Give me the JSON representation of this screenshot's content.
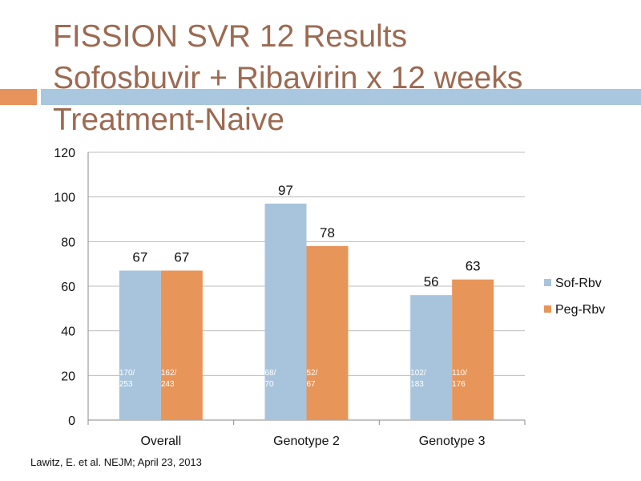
{
  "slide": {
    "title_lines": [
      "FISSION SVR 12 Results",
      "Sofosbuvir + Ribavirin x 12 weeks",
      "Treatment-Naive"
    ],
    "citation": "Lawitz, E. et al. NEJM; April 23, 2013",
    "colors": {
      "title": "#9c6a52",
      "accent_orange": "#e8935b",
      "accent_blue": "#a9c7de"
    }
  },
  "chart_data": {
    "type": "bar",
    "categories": [
      "Overall",
      "Genotype 2",
      "Genotype 3"
    ],
    "series": [
      {
        "name": "Sof-Rbv",
        "color": "#a8c4dd",
        "values": [
          67,
          97,
          56
        ],
        "fraction_labels": [
          [
            "170/",
            "253"
          ],
          [
            "68/",
            "70"
          ],
          [
            "102/",
            "183"
          ]
        ]
      },
      {
        "name": "Peg-Rbv",
        "color": "#e8955a",
        "values": [
          67,
          78,
          63
        ],
        "fraction_labels": [
          [
            "162/",
            "243"
          ],
          [
            "52/",
            "67"
          ],
          [
            "110/",
            "176"
          ]
        ]
      }
    ],
    "ylim": [
      0,
      120
    ],
    "yticks": [
      0,
      20,
      40,
      60,
      80,
      100,
      120
    ],
    "grid": true,
    "legend": "right",
    "xlabel": "",
    "ylabel": ""
  }
}
